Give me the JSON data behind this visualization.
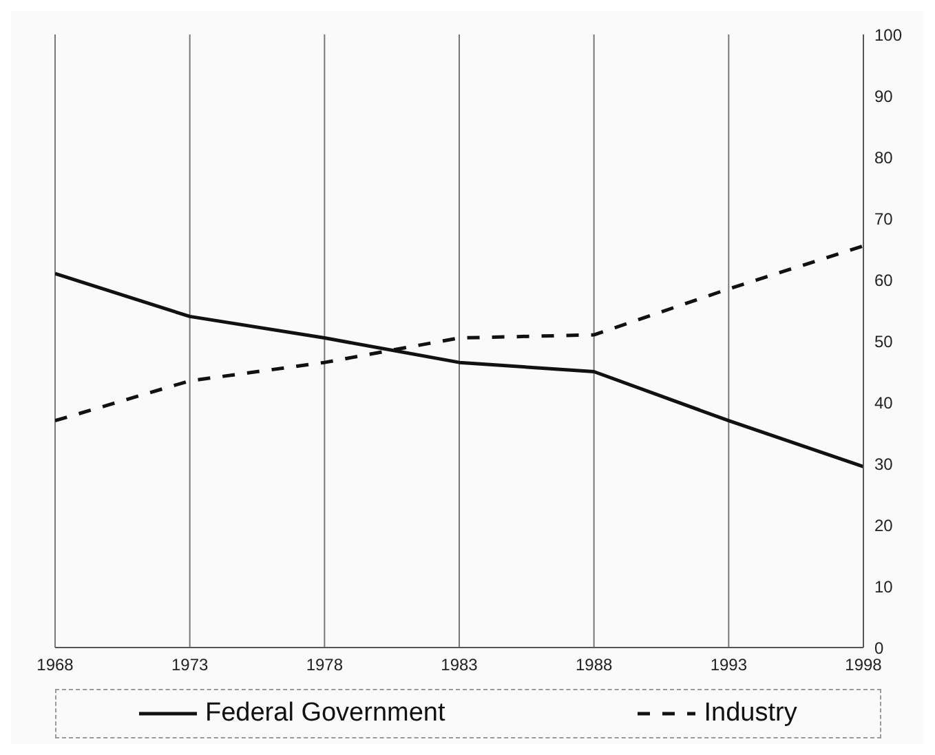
{
  "chart_data": {
    "type": "line",
    "x": [
      1968,
      1973,
      1978,
      1983,
      1988,
      1993,
      1998
    ],
    "series": [
      {
        "name": "Federal Government",
        "color": "#111111",
        "line_style": "solid",
        "values": [
          61,
          54,
          50.5,
          46.5,
          45,
          37,
          29.5
        ]
      },
      {
        "name": "Industry",
        "color": "#111111",
        "line_style": "dashed",
        "values": [
          37,
          43.5,
          46.5,
          50.5,
          51,
          58.5,
          65.5
        ]
      }
    ],
    "xlim": [
      1968,
      1998
    ],
    "xticks": [
      1968,
      1973,
      1978,
      1983,
      1988,
      1993,
      1998
    ],
    "ylim": [
      0,
      100
    ],
    "yticks": [
      0,
      10,
      20,
      30,
      40,
      50,
      60,
      70,
      80,
      90,
      100
    ],
    "grid": "x",
    "legend": "bottom",
    "marker": "none"
  }
}
